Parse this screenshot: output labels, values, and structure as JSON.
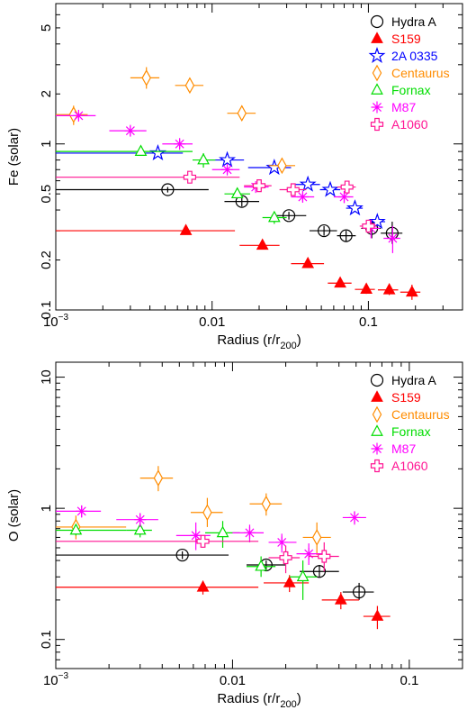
{
  "chart_data": [
    {
      "type": "scatter",
      "ylabel": "Fe (solar)",
      "xlabel": "Radius (r/r",
      "xlabel_sub": "200",
      "x_scale": "log",
      "y_scale": "log",
      "xlim": [
        0.001,
        0.4
      ],
      "ylim": [
        0.1,
        7
      ],
      "x_ticks": [
        {
          "value": 0.001,
          "label": "10",
          "sup": "−3"
        },
        {
          "value": 0.01,
          "label": "0.01",
          "sup": ""
        },
        {
          "value": 0.1,
          "label": "0.1",
          "sup": ""
        }
      ],
      "y_ticks": [
        {
          "value": 0.1,
          "label": "0.1"
        },
        {
          "value": 0.2,
          "label": "0.2"
        },
        {
          "value": 0.5,
          "label": "0.5"
        },
        {
          "value": 1,
          "label": "1"
        },
        {
          "value": 2,
          "label": "2"
        },
        {
          "value": 5,
          "label": "5"
        }
      ],
      "legend_position": "top-right",
      "series": [
        {
          "name": "Hydra A",
          "marker": "circle-plus",
          "color": "#000000",
          "points": [
            {
              "x": 0.0052,
              "y": 0.53,
              "xlo": 0.001,
              "xhi": 0.0095,
              "ylo": 0.51,
              "yhi": 0.55
            },
            {
              "x": 0.0155,
              "y": 0.45,
              "xlo": 0.012,
              "xhi": 0.02,
              "ylo": 0.42,
              "yhi": 0.48
            },
            {
              "x": 0.031,
              "y": 0.37,
              "xlo": 0.024,
              "xhi": 0.04,
              "ylo": 0.35,
              "yhi": 0.39
            },
            {
              "x": 0.052,
              "y": 0.3,
              "xlo": 0.042,
              "xhi": 0.063,
              "ylo": 0.28,
              "yhi": 0.32
            },
            {
              "x": 0.072,
              "y": 0.28,
              "xlo": 0.063,
              "xhi": 0.083,
              "ylo": 0.26,
              "yhi": 0.3
            },
            {
              "x": 0.105,
              "y": 0.31,
              "xlo": 0.09,
              "xhi": 0.12,
              "ylo": 0.27,
              "yhi": 0.35
            },
            {
              "x": 0.142,
              "y": 0.29,
              "xlo": 0.12,
              "xhi": 0.165,
              "ylo": 0.25,
              "yhi": 0.34
            }
          ]
        },
        {
          "name": "S159",
          "marker": "triangle-filled",
          "color": "#ff0000",
          "points": [
            {
              "x": 0.0068,
              "y": 0.3,
              "xlo": 0.001,
              "xhi": 0.014,
              "ylo": 0.285,
              "yhi": 0.315
            },
            {
              "x": 0.021,
              "y": 0.245,
              "xlo": 0.015,
              "xhi": 0.027,
              "ylo": 0.235,
              "yhi": 0.255
            },
            {
              "x": 0.041,
              "y": 0.19,
              "xlo": 0.032,
              "xhi": 0.052,
              "ylo": 0.18,
              "yhi": 0.2
            },
            {
              "x": 0.066,
              "y": 0.145,
              "xlo": 0.055,
              "xhi": 0.078,
              "ylo": 0.137,
              "yhi": 0.153
            },
            {
              "x": 0.097,
              "y": 0.133,
              "xlo": 0.082,
              "xhi": 0.11,
              "ylo": 0.125,
              "yhi": 0.142
            },
            {
              "x": 0.136,
              "y": 0.132,
              "xlo": 0.115,
              "xhi": 0.155,
              "ylo": 0.123,
              "yhi": 0.142
            },
            {
              "x": 0.19,
              "y": 0.128,
              "xlo": 0.16,
              "xhi": 0.215,
              "ylo": 0.115,
              "yhi": 0.142
            }
          ]
        },
        {
          "name": "2A 0335",
          "marker": "star-open",
          "color": "#0000ff",
          "points": [
            {
              "x": 0.0045,
              "y": 0.88,
              "xlo": 0.001,
              "xhi": 0.0065,
              "ylo": 0.85,
              "yhi": 0.91
            },
            {
              "x": 0.0125,
              "y": 0.8,
              "xlo": 0.0095,
              "xhi": 0.016,
              "ylo": 0.77,
              "yhi": 0.83
            },
            {
              "x": 0.025,
              "y": 0.72,
              "xlo": 0.017,
              "xhi": 0.032,
              "ylo": 0.69,
              "yhi": 0.75
            },
            {
              "x": 0.041,
              "y": 0.57,
              "xlo": 0.033,
              "xhi": 0.049,
              "ylo": 0.55,
              "yhi": 0.59
            },
            {
              "x": 0.057,
              "y": 0.53,
              "xlo": 0.049,
              "xhi": 0.066,
              "ylo": 0.51,
              "yhi": 0.55
            },
            {
              "x": 0.082,
              "y": 0.41,
              "xlo": 0.072,
              "xhi": 0.092,
              "ylo": 0.39,
              "yhi": 0.43
            },
            {
              "x": 0.114,
              "y": 0.34,
              "xlo": 0.1,
              "xhi": 0.128,
              "ylo": 0.32,
              "yhi": 0.36
            }
          ]
        },
        {
          "name": "Centaurus",
          "marker": "diamond-open",
          "color": "#ff8c00",
          "points": [
            {
              "x": 0.0013,
              "y": 1.5,
              "xlo": 0.001,
              "xhi": 0.0016,
              "ylo": 1.3,
              "yhi": 1.7
            },
            {
              "x": 0.0038,
              "y": 2.5,
              "xlo": 0.003,
              "xhi": 0.0046,
              "ylo": 2.15,
              "yhi": 2.9
            },
            {
              "x": 0.0072,
              "y": 2.25,
              "xlo": 0.0058,
              "xhi": 0.0088,
              "ylo": 2.05,
              "yhi": 2.5
            },
            {
              "x": 0.0155,
              "y": 1.53,
              "xlo": 0.0125,
              "xhi": 0.019,
              "ylo": 1.38,
              "yhi": 1.7
            },
            {
              "x": 0.028,
              "y": 0.74,
              "xlo": 0.023,
              "xhi": 0.034,
              "ylo": 0.68,
              "yhi": 0.8
            }
          ]
        },
        {
          "name": "Fornax",
          "marker": "triangle-open",
          "color": "#00dd00",
          "points": [
            {
              "x": 0.0035,
              "y": 0.9,
              "xlo": 0.001,
              "xhi": 0.0075,
              "ylo": 0.87,
              "yhi": 0.93
            },
            {
              "x": 0.0088,
              "y": 0.8,
              "xlo": 0.0075,
              "xhi": 0.0105,
              "ylo": 0.72,
              "yhi": 0.88
            },
            {
              "x": 0.0145,
              "y": 0.5,
              "xlo": 0.012,
              "xhi": 0.0175,
              "ylo": 0.47,
              "yhi": 0.53
            },
            {
              "x": 0.025,
              "y": 0.36,
              "xlo": 0.021,
              "xhi": 0.03,
              "ylo": 0.33,
              "yhi": 0.39
            }
          ]
        },
        {
          "name": "M87",
          "marker": "asterisk",
          "color": "#ff00ff",
          "points": [
            {
              "x": 0.0014,
              "y": 1.48,
              "xlo": 0.001,
              "xhi": 0.0018,
              "ylo": 1.4,
              "yhi": 1.56
            },
            {
              "x": 0.003,
              "y": 1.2,
              "xlo": 0.0022,
              "xhi": 0.0038,
              "ylo": 1.12,
              "yhi": 1.28
            },
            {
              "x": 0.0062,
              "y": 1.0,
              "xlo": 0.0048,
              "xhi": 0.0075,
              "ylo": 0.94,
              "yhi": 1.06
            },
            {
              "x": 0.0125,
              "y": 0.7,
              "xlo": 0.01,
              "xhi": 0.015,
              "ylo": 0.66,
              "yhi": 0.74
            },
            {
              "x": 0.019,
              "y": 0.55,
              "xlo": 0.016,
              "xhi": 0.023,
              "ylo": 0.52,
              "yhi": 0.58
            },
            {
              "x": 0.038,
              "y": 0.48,
              "xlo": 0.032,
              "xhi": 0.045,
              "ylo": 0.45,
              "yhi": 0.51
            },
            {
              "x": 0.07,
              "y": 0.48,
              "xlo": 0.06,
              "xhi": 0.08,
              "ylo": 0.44,
              "yhi": 0.52
            },
            {
              "x": 0.104,
              "y": 0.31,
              "xlo": 0.092,
              "xhi": 0.118,
              "ylo": 0.27,
              "yhi": 0.35
            },
            {
              "x": 0.143,
              "y": 0.27,
              "xlo": 0.125,
              "xhi": 0.16,
              "ylo": 0.22,
              "yhi": 0.32
            }
          ]
        },
        {
          "name": "A1060",
          "marker": "cross-open",
          "color": "#ff1493",
          "points": [
            {
              "x": 0.0072,
              "y": 0.63,
              "xlo": 0.001,
              "xhi": 0.015,
              "ylo": 0.6,
              "yhi": 0.66
            },
            {
              "x": 0.02,
              "y": 0.56,
              "xlo": 0.016,
              "xhi": 0.024,
              "ylo": 0.53,
              "yhi": 0.59
            },
            {
              "x": 0.033,
              "y": 0.53,
              "xlo": 0.027,
              "xhi": 0.04,
              "ylo": 0.49,
              "yhi": 0.57
            },
            {
              "x": 0.073,
              "y": 0.55,
              "xlo": 0.063,
              "xhi": 0.083,
              "ylo": 0.52,
              "yhi": 0.58
            },
            {
              "x": 0.1,
              "y": 0.32,
              "xlo": 0.088,
              "xhi": 0.113,
              "ylo": 0.29,
              "yhi": 0.35
            }
          ]
        }
      ]
    },
    {
      "type": "scatter",
      "ylabel": "O (solar)",
      "xlabel": "Radius (r/r",
      "xlabel_sub": "200",
      "x_scale": "log",
      "y_scale": "log",
      "xlim": [
        0.001,
        0.2
      ],
      "ylim": [
        0.06,
        13
      ],
      "x_ticks": [
        {
          "value": 0.001,
          "label": "10",
          "sup": "−3"
        },
        {
          "value": 0.01,
          "label": "0.01",
          "sup": ""
        },
        {
          "value": 0.1,
          "label": "0.1",
          "sup": ""
        }
      ],
      "y_ticks": [
        {
          "value": 0.1,
          "label": "0.1"
        },
        {
          "value": 1,
          "label": "1"
        },
        {
          "value": 10,
          "label": "10"
        }
      ],
      "legend_position": "top-right",
      "series": [
        {
          "name": "Hydra A",
          "marker": "circle-plus",
          "color": "#000000",
          "points": [
            {
              "x": 0.0052,
              "y": 0.44,
              "xlo": 0.001,
              "xhi": 0.0095,
              "ylo": 0.41,
              "yhi": 0.47
            },
            {
              "x": 0.0155,
              "y": 0.37,
              "xlo": 0.012,
              "xhi": 0.02,
              "ylo": 0.34,
              "yhi": 0.4
            },
            {
              "x": 0.031,
              "y": 0.33,
              "xlo": 0.024,
              "xhi": 0.04,
              "ylo": 0.3,
              "yhi": 0.37
            },
            {
              "x": 0.052,
              "y": 0.23,
              "xlo": 0.042,
              "xhi": 0.063,
              "ylo": 0.2,
              "yhi": 0.27
            }
          ]
        },
        {
          "name": "S159",
          "marker": "triangle-filled",
          "color": "#ff0000",
          "points": [
            {
              "x": 0.0068,
              "y": 0.25,
              "xlo": 0.001,
              "xhi": 0.014,
              "ylo": 0.22,
              "yhi": 0.28
            },
            {
              "x": 0.021,
              "y": 0.27,
              "xlo": 0.015,
              "xhi": 0.027,
              "ylo": 0.23,
              "yhi": 0.31
            },
            {
              "x": 0.041,
              "y": 0.2,
              "xlo": 0.032,
              "xhi": 0.052,
              "ylo": 0.17,
              "yhi": 0.23
            },
            {
              "x": 0.066,
              "y": 0.15,
              "xlo": 0.055,
              "xhi": 0.078,
              "ylo": 0.12,
              "yhi": 0.18
            }
          ]
        },
        {
          "name": "Centaurus",
          "marker": "diamond-open",
          "color": "#ff8c00",
          "points": [
            {
              "x": 0.0013,
              "y": 0.72,
              "xlo": 0.001,
              "xhi": 0.0025,
              "ylo": 0.58,
              "yhi": 0.88
            },
            {
              "x": 0.0038,
              "y": 1.7,
              "xlo": 0.003,
              "xhi": 0.0046,
              "ylo": 1.35,
              "yhi": 2.1
            },
            {
              "x": 0.0072,
              "y": 0.93,
              "xlo": 0.0058,
              "xhi": 0.0088,
              "ylo": 0.72,
              "yhi": 1.2
            },
            {
              "x": 0.0155,
              "y": 1.08,
              "xlo": 0.0125,
              "xhi": 0.019,
              "ylo": 0.88,
              "yhi": 1.3
            },
            {
              "x": 0.03,
              "y": 0.6,
              "xlo": 0.025,
              "xhi": 0.036,
              "ylo": 0.44,
              "yhi": 0.78
            }
          ]
        },
        {
          "name": "Fornax",
          "marker": "triangle-open",
          "color": "#00dd00",
          "points": [
            {
              "x": 0.0013,
              "y": 0.68,
              "xlo": 0.001,
              "xhi": 0.0025,
              "ylo": 0.62,
              "yhi": 0.74
            },
            {
              "x": 0.003,
              "y": 0.68,
              "xlo": 0.0025,
              "xhi": 0.0035,
              "ylo": 0.6,
              "yhi": 0.76
            },
            {
              "x": 0.0088,
              "y": 0.65,
              "xlo": 0.007,
              "xhi": 0.011,
              "ylo": 0.5,
              "yhi": 0.8
            },
            {
              "x": 0.0145,
              "y": 0.36,
              "xlo": 0.012,
              "xhi": 0.0175,
              "ylo": 0.3,
              "yhi": 0.43
            },
            {
              "x": 0.025,
              "y": 0.3,
              "xlo": 0.021,
              "xhi": 0.03,
              "ylo": 0.2,
              "yhi": 0.4
            }
          ]
        },
        {
          "name": "M87",
          "marker": "asterisk",
          "color": "#ff00ff",
          "points": [
            {
              "x": 0.0014,
              "y": 0.95,
              "xlo": 0.001,
              "xhi": 0.0018,
              "ylo": 0.85,
              "yhi": 1.05
            },
            {
              "x": 0.003,
              "y": 0.82,
              "xlo": 0.0022,
              "xhi": 0.0038,
              "ylo": 0.72,
              "yhi": 0.92
            },
            {
              "x": 0.0062,
              "y": 0.62,
              "xlo": 0.0048,
              "xhi": 0.0075,
              "ylo": 0.48,
              "yhi": 0.78
            },
            {
              "x": 0.0125,
              "y": 0.65,
              "xlo": 0.01,
              "xhi": 0.015,
              "ylo": 0.55,
              "yhi": 0.75
            },
            {
              "x": 0.019,
              "y": 0.55,
              "xlo": 0.016,
              "xhi": 0.023,
              "ylo": 0.46,
              "yhi": 0.64
            },
            {
              "x": 0.027,
              "y": 0.45,
              "xlo": 0.023,
              "xhi": 0.032,
              "ylo": 0.37,
              "yhi": 0.54
            },
            {
              "x": 0.049,
              "y": 0.85,
              "xlo": 0.042,
              "xhi": 0.057,
              "ylo": 0.75,
              "yhi": 0.95
            }
          ]
        },
        {
          "name": "A1060",
          "marker": "cross-open",
          "color": "#ff1493",
          "points": [
            {
              "x": 0.0068,
              "y": 0.56,
              "xlo": 0.001,
              "xhi": 0.014,
              "ylo": 0.5,
              "yhi": 0.62
            },
            {
              "x": 0.02,
              "y": 0.42,
              "xlo": 0.016,
              "xhi": 0.024,
              "ylo": 0.32,
              "yhi": 0.52
            },
            {
              "x": 0.033,
              "y": 0.43,
              "xlo": 0.027,
              "xhi": 0.04,
              "ylo": 0.33,
              "yhi": 0.55
            }
          ]
        }
      ]
    }
  ]
}
